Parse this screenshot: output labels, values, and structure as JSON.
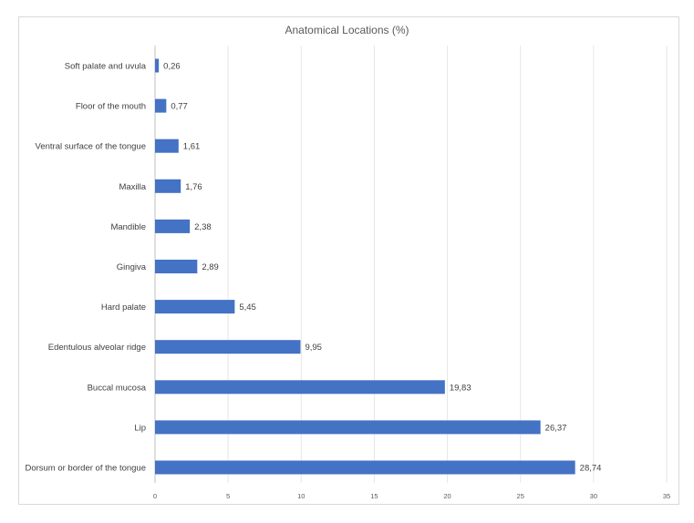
{
  "chart_data": {
    "type": "bar",
    "orientation": "horizontal",
    "title": "Anatomical Locations (%)",
    "categories": [
      "Soft palate and uvula",
      "Floor of the mouth",
      "Ventral surface of the tongue",
      "Maxilla",
      "Mandible",
      "Gingiva",
      "Hard palate",
      "Edentulous alveolar ridge",
      "Buccal mucosa",
      "Lip",
      "Dorsum or border of the tongue"
    ],
    "values": [
      0.26,
      0.77,
      1.61,
      1.76,
      2.38,
      2.89,
      5.45,
      9.95,
      19.83,
      26.37,
      28.74
    ],
    "value_labels": [
      "0,26",
      "0,77",
      "1,61",
      "1,76",
      "2,38",
      "2,89",
      "5,45",
      "9,95",
      "19,83",
      "26,37",
      "28,74"
    ],
    "xlim": [
      0,
      35
    ],
    "xticks": [
      0,
      5,
      10,
      15,
      20,
      25,
      30,
      35
    ],
    "grid": "vertical",
    "legend": "none",
    "bar_color": "#4472c4"
  }
}
